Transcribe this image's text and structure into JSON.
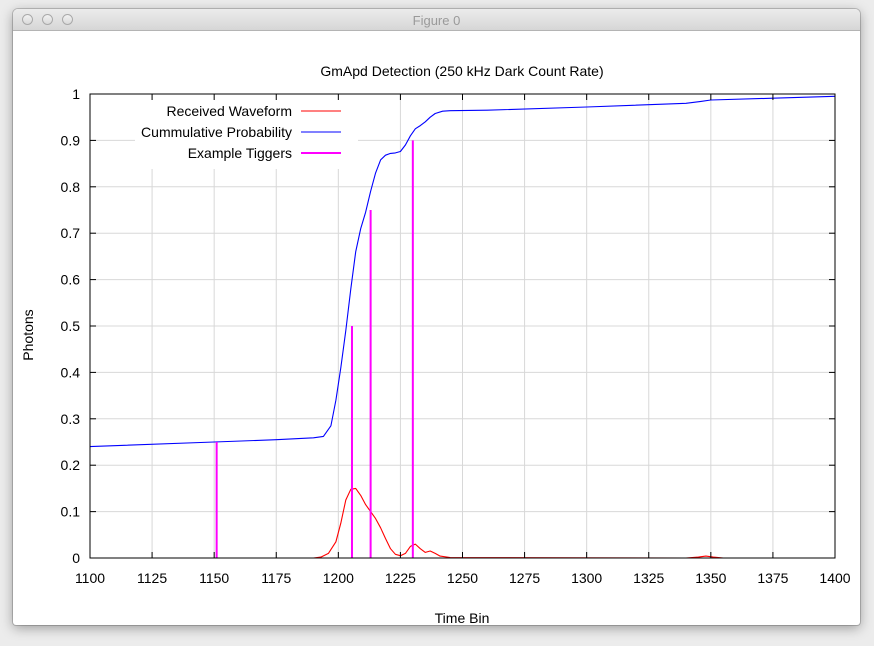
{
  "window": {
    "title": "Figure 0"
  },
  "chart_data": {
    "type": "line",
    "title": "GmApd Detection (250 kHz Dark Count Rate)",
    "xlabel": "Time Bin",
    "ylabel": "Photons",
    "xlim": [
      1100,
      1400
    ],
    "ylim": [
      0,
      1
    ],
    "xticks": [
      1100,
      1125,
      1150,
      1175,
      1200,
      1225,
      1250,
      1275,
      1300,
      1325,
      1350,
      1375,
      1400
    ],
    "yticks": [
      0,
      0.1,
      0.2,
      0.3,
      0.4,
      0.5,
      0.6,
      0.7,
      0.8,
      0.9,
      1
    ],
    "ytick_labels": [
      "0",
      "0.1",
      "0.2",
      "0.3",
      "0.4",
      "0.5",
      "0.6",
      "0.7",
      "0.8",
      "0.9",
      "1"
    ],
    "grid": true,
    "legend_position": "top-left",
    "series": [
      {
        "name": "Received Waveform",
        "color": "#ff0000",
        "x": [
          1100,
          1190,
          1193,
          1196,
          1199,
          1201,
          1203,
          1205,
          1207,
          1209,
          1211,
          1213,
          1215,
          1217,
          1219,
          1221,
          1223,
          1225,
          1227,
          1229,
          1231,
          1233,
          1235,
          1237,
          1239,
          1241,
          1245,
          1340,
          1345,
          1348,
          1351,
          1355,
          1400
        ],
        "y": [
          0,
          0,
          0.002,
          0.01,
          0.035,
          0.075,
          0.125,
          0.148,
          0.15,
          0.135,
          0.115,
          0.1,
          0.085,
          0.065,
          0.042,
          0.02,
          0.008,
          0.005,
          0.01,
          0.025,
          0.03,
          0.02,
          0.012,
          0.015,
          0.01,
          0.004,
          0.001,
          0,
          0.002,
          0.004,
          0.002,
          0,
          0
        ]
      },
      {
        "name": "Cummulative Probability",
        "color": "#0000ff",
        "x": [
          1100,
          1150,
          1175,
          1190,
          1194,
          1197,
          1199,
          1201,
          1203,
          1205,
          1207,
          1209,
          1211,
          1213,
          1215,
          1217,
          1219,
          1221,
          1223,
          1225,
          1227,
          1229,
          1231,
          1233,
          1235,
          1237,
          1239,
          1242,
          1245,
          1260,
          1300,
          1340,
          1346,
          1350,
          1375,
          1400
        ],
        "y": [
          0.24,
          0.25,
          0.255,
          0.259,
          0.262,
          0.285,
          0.34,
          0.41,
          0.49,
          0.58,
          0.66,
          0.71,
          0.745,
          0.79,
          0.83,
          0.858,
          0.868,
          0.872,
          0.873,
          0.876,
          0.89,
          0.91,
          0.925,
          0.932,
          0.94,
          0.95,
          0.958,
          0.963,
          0.964,
          0.965,
          0.972,
          0.98,
          0.984,
          0.987,
          0.991,
          0.995
        ]
      },
      {
        "name": "Example Tiggers",
        "color": "#ff00ff",
        "type": "stem",
        "x": [
          1151,
          1205.5,
          1213,
          1230
        ],
        "y": [
          0.25,
          0.5,
          0.75,
          0.9
        ]
      }
    ]
  }
}
